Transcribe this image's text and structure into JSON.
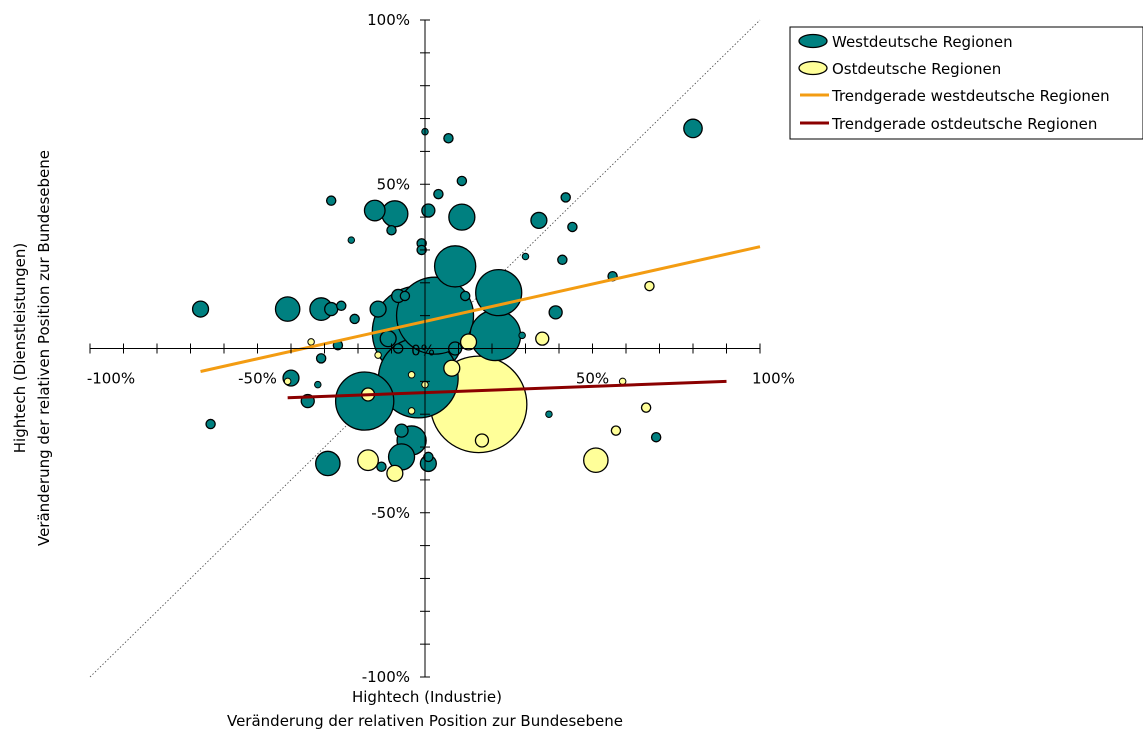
{
  "chart_data": {
    "type": "scatter",
    "xlabel": [
      "Hightech (Industrie)",
      "Veränderung der relativen Position zur Bundesebene"
    ],
    "ylabel": [
      "Hightech (Dienstleistungen)",
      "Veränderung der relativen Position zur Bundesebene"
    ],
    "xlim": [
      -100,
      100
    ],
    "ylim": [
      -100,
      100
    ],
    "x_ticks": [
      -100,
      -50,
      0,
      50,
      100
    ],
    "y_ticks": [
      -100,
      -50,
      0,
      50,
      100
    ],
    "x_tick_labels": [
      "-100%",
      "-50%",
      "0%",
      "50%",
      "100%"
    ],
    "y_tick_labels": [
      "-100%",
      "-50%",
      "",
      "50%",
      "100%"
    ],
    "grid": false,
    "diagonal_reference": true,
    "legend_position": "top-right",
    "legend": [
      {
        "label": "Westdeutsche Regionen",
        "kind": "bubble",
        "color": "#008080"
      },
      {
        "label": "Ostdeutsche Regionen",
        "kind": "bubble",
        "color": "#FFFF99"
      },
      {
        "label": "Trendgerade westdeutsche Regionen",
        "kind": "line",
        "color": "#F39C12"
      },
      {
        "label": "Trendgerade ostdeutsche Regionen",
        "kind": "line",
        "color": "#8B0000"
      }
    ],
    "series": [
      {
        "name": "Westdeutsche Regionen",
        "color": "#008080",
        "points": [
          {
            "x": 80,
            "y": 67,
            "size": 4
          },
          {
            "x": 7,
            "y": 64,
            "size": 1
          },
          {
            "x": 0,
            "y": 66,
            "size": 0.5
          },
          {
            "x": 11,
            "y": 51,
            "size": 1
          },
          {
            "x": 4,
            "y": 47,
            "size": 1
          },
          {
            "x": 42,
            "y": 46,
            "size": 1
          },
          {
            "x": -28,
            "y": 45,
            "size": 1
          },
          {
            "x": 1,
            "y": 42,
            "size": 2
          },
          {
            "x": -15,
            "y": 42,
            "size": 5
          },
          {
            "x": -9,
            "y": 41,
            "size": 8
          },
          {
            "x": 11,
            "y": 40,
            "size": 8
          },
          {
            "x": 34,
            "y": 39,
            "size": 3
          },
          {
            "x": 44,
            "y": 37,
            "size": 1
          },
          {
            "x": -10,
            "y": 36,
            "size": 1
          },
          {
            "x": -22,
            "y": 33,
            "size": 0.5
          },
          {
            "x": -1,
            "y": 32,
            "size": 1
          },
          {
            "x": -1,
            "y": 30,
            "size": 1
          },
          {
            "x": 30,
            "y": 28,
            "size": 0.5
          },
          {
            "x": 41,
            "y": 27,
            "size": 1
          },
          {
            "x": 9,
            "y": 25,
            "size": 20
          },
          {
            "x": 56,
            "y": 22,
            "size": 1
          },
          {
            "x": 22,
            "y": 17,
            "size": 25
          },
          {
            "x": -8,
            "y": 16,
            "size": 2
          },
          {
            "x": -6,
            "y": 16,
            "size": 1
          },
          {
            "x": 12,
            "y": 16,
            "size": 1
          },
          {
            "x": 39,
            "y": 11,
            "size": 2
          },
          {
            "x": -67,
            "y": 12,
            "size": 3
          },
          {
            "x": -41,
            "y": 12,
            "size": 7
          },
          {
            "x": -31,
            "y": 12,
            "size": 6
          },
          {
            "x": -28,
            "y": 12,
            "size": 2
          },
          {
            "x": -25,
            "y": 13,
            "size": 1
          },
          {
            "x": -14,
            "y": 12,
            "size": 3
          },
          {
            "x": 29,
            "y": 4,
            "size": 0.5
          },
          {
            "x": -21,
            "y": 9,
            "size": 1
          },
          {
            "x": 3,
            "y": 10,
            "size": 70
          },
          {
            "x": 21,
            "y": 4,
            "size": 30
          },
          {
            "x": -2,
            "y": 5,
            "size": 100
          },
          {
            "x": -11,
            "y": 3,
            "size": 3
          },
          {
            "x": 9,
            "y": 0,
            "size": 2
          },
          {
            "x": -26,
            "y": 1,
            "size": 1
          },
          {
            "x": -31,
            "y": -3,
            "size": 1
          },
          {
            "x": -8,
            "y": 0,
            "size": 1
          },
          {
            "x": -2,
            "y": -9,
            "size": 75
          },
          {
            "x": -40,
            "y": -9,
            "size": 3
          },
          {
            "x": -32,
            "y": -11,
            "size": 0.5
          },
          {
            "x": -18,
            "y": -16,
            "size": 40
          },
          {
            "x": -35,
            "y": -16,
            "size": 2
          },
          {
            "x": -64,
            "y": -23,
            "size": 1
          },
          {
            "x": -7,
            "y": -25,
            "size": 2
          },
          {
            "x": -4,
            "y": -28,
            "size": 10
          },
          {
            "x": -7,
            "y": -33,
            "size": 8
          },
          {
            "x": 37,
            "y": -20,
            "size": 0.5
          },
          {
            "x": 69,
            "y": -27,
            "size": 1
          },
          {
            "x": 1,
            "y": -33,
            "size": 1
          },
          {
            "x": -13,
            "y": -36,
            "size": 1
          },
          {
            "x": 1,
            "y": -35,
            "size": 3
          },
          {
            "x": -29,
            "y": -35,
            "size": 7
          }
        ]
      },
      {
        "name": "Ostdeutsche Regionen",
        "color": "#FFFF99",
        "points": [
          {
            "x": 67,
            "y": 19,
            "size": 1
          },
          {
            "x": 35,
            "y": 3,
            "size": 2
          },
          {
            "x": 13,
            "y": 2,
            "size": 3
          },
          {
            "x": -34,
            "y": 2,
            "size": 0.5
          },
          {
            "x": -14,
            "y": -2,
            "size": 0.5
          },
          {
            "x": 8,
            "y": -6,
            "size": 3
          },
          {
            "x": -4,
            "y": -8,
            "size": 0.5
          },
          {
            "x": -41,
            "y": -10,
            "size": 0.5
          },
          {
            "x": 59,
            "y": -10,
            "size": 0.5
          },
          {
            "x": 0,
            "y": -11,
            "size": 0.5
          },
          {
            "x": 16,
            "y": -17,
            "size": 110
          },
          {
            "x": -17,
            "y": -14,
            "size": 2
          },
          {
            "x": 66,
            "y": -18,
            "size": 1
          },
          {
            "x": -4,
            "y": -19,
            "size": 0.5
          },
          {
            "x": 57,
            "y": -25,
            "size": 1
          },
          {
            "x": 17,
            "y": -28,
            "size": 2
          },
          {
            "x": -17,
            "y": -34,
            "size": 5
          },
          {
            "x": -9,
            "y": -38,
            "size": 3
          },
          {
            "x": 51,
            "y": -34,
            "size": 7
          }
        ]
      }
    ],
    "trendlines": [
      {
        "name": "Trendgerade westdeutsche Regionen",
        "color": "#F39C12",
        "x": [
          -67,
          100
        ],
        "y": [
          -7,
          31
        ]
      },
      {
        "name": "Trendgerade ostdeutsche Regionen",
        "color": "#8B0000",
        "x": [
          -41,
          90
        ],
        "y": [
          -15,
          -10
        ]
      }
    ]
  }
}
